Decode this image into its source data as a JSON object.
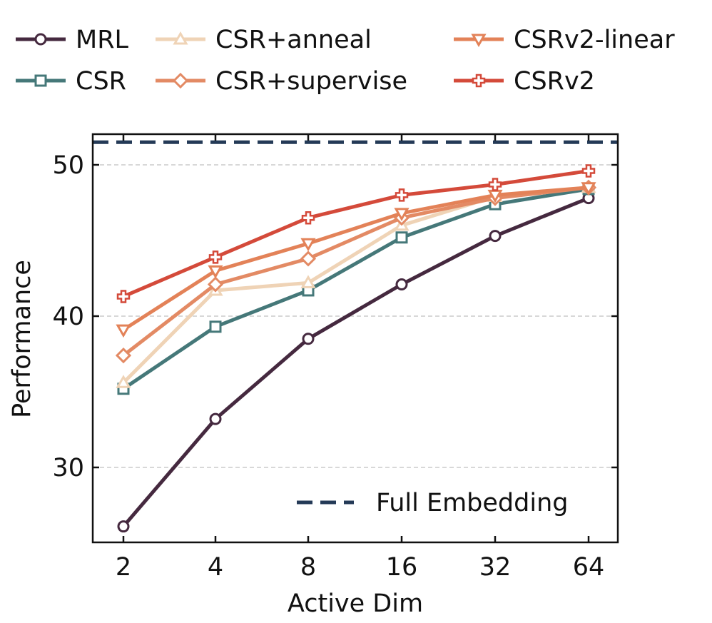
{
  "chart_data": {
    "type": "line",
    "title": "",
    "xlabel": "Active Dim",
    "ylabel": "Performance",
    "categories": [
      "2",
      "4",
      "8",
      "16",
      "32",
      "64"
    ],
    "ylim": [
      25.0,
      52.0
    ],
    "yticks": [
      30,
      40,
      50
    ],
    "grid": "horizontal dashed",
    "reference_line": {
      "name": "Full Embedding",
      "value": 51.5,
      "color": "#243a57",
      "style": "dashed"
    },
    "reference_legend_placement": "bottom-right",
    "legend_placement": "top, outside",
    "series": [
      {
        "name": "MRL",
        "color": "#45293f",
        "marker": "circle",
        "values": [
          26.1,
          33.2,
          38.5,
          42.1,
          45.3,
          47.8
        ]
      },
      {
        "name": "CSR",
        "color": "#457879",
        "marker": "square",
        "values": [
          35.2,
          39.3,
          41.7,
          45.2,
          47.4,
          48.4
        ]
      },
      {
        "name": "CSR+anneal",
        "color": "#efd3b6",
        "marker": "triangle-up",
        "values": [
          35.6,
          41.7,
          42.2,
          46.0,
          47.9,
          48.5
        ]
      },
      {
        "name": "CSR+supervise",
        "color": "#e38a64",
        "marker": "diamond",
        "values": [
          37.4,
          42.1,
          43.8,
          46.5,
          47.8,
          48.5
        ]
      },
      {
        "name": "CSRv2-linear",
        "color": "#e38258",
        "marker": "triangle-down",
        "values": [
          39.1,
          43.0,
          44.8,
          46.8,
          48.0,
          48.5
        ]
      },
      {
        "name": "CSRv2",
        "color": "#d44a3a",
        "marker": "plus",
        "values": [
          41.3,
          43.9,
          46.5,
          48.0,
          48.7,
          49.6
        ]
      }
    ]
  }
}
